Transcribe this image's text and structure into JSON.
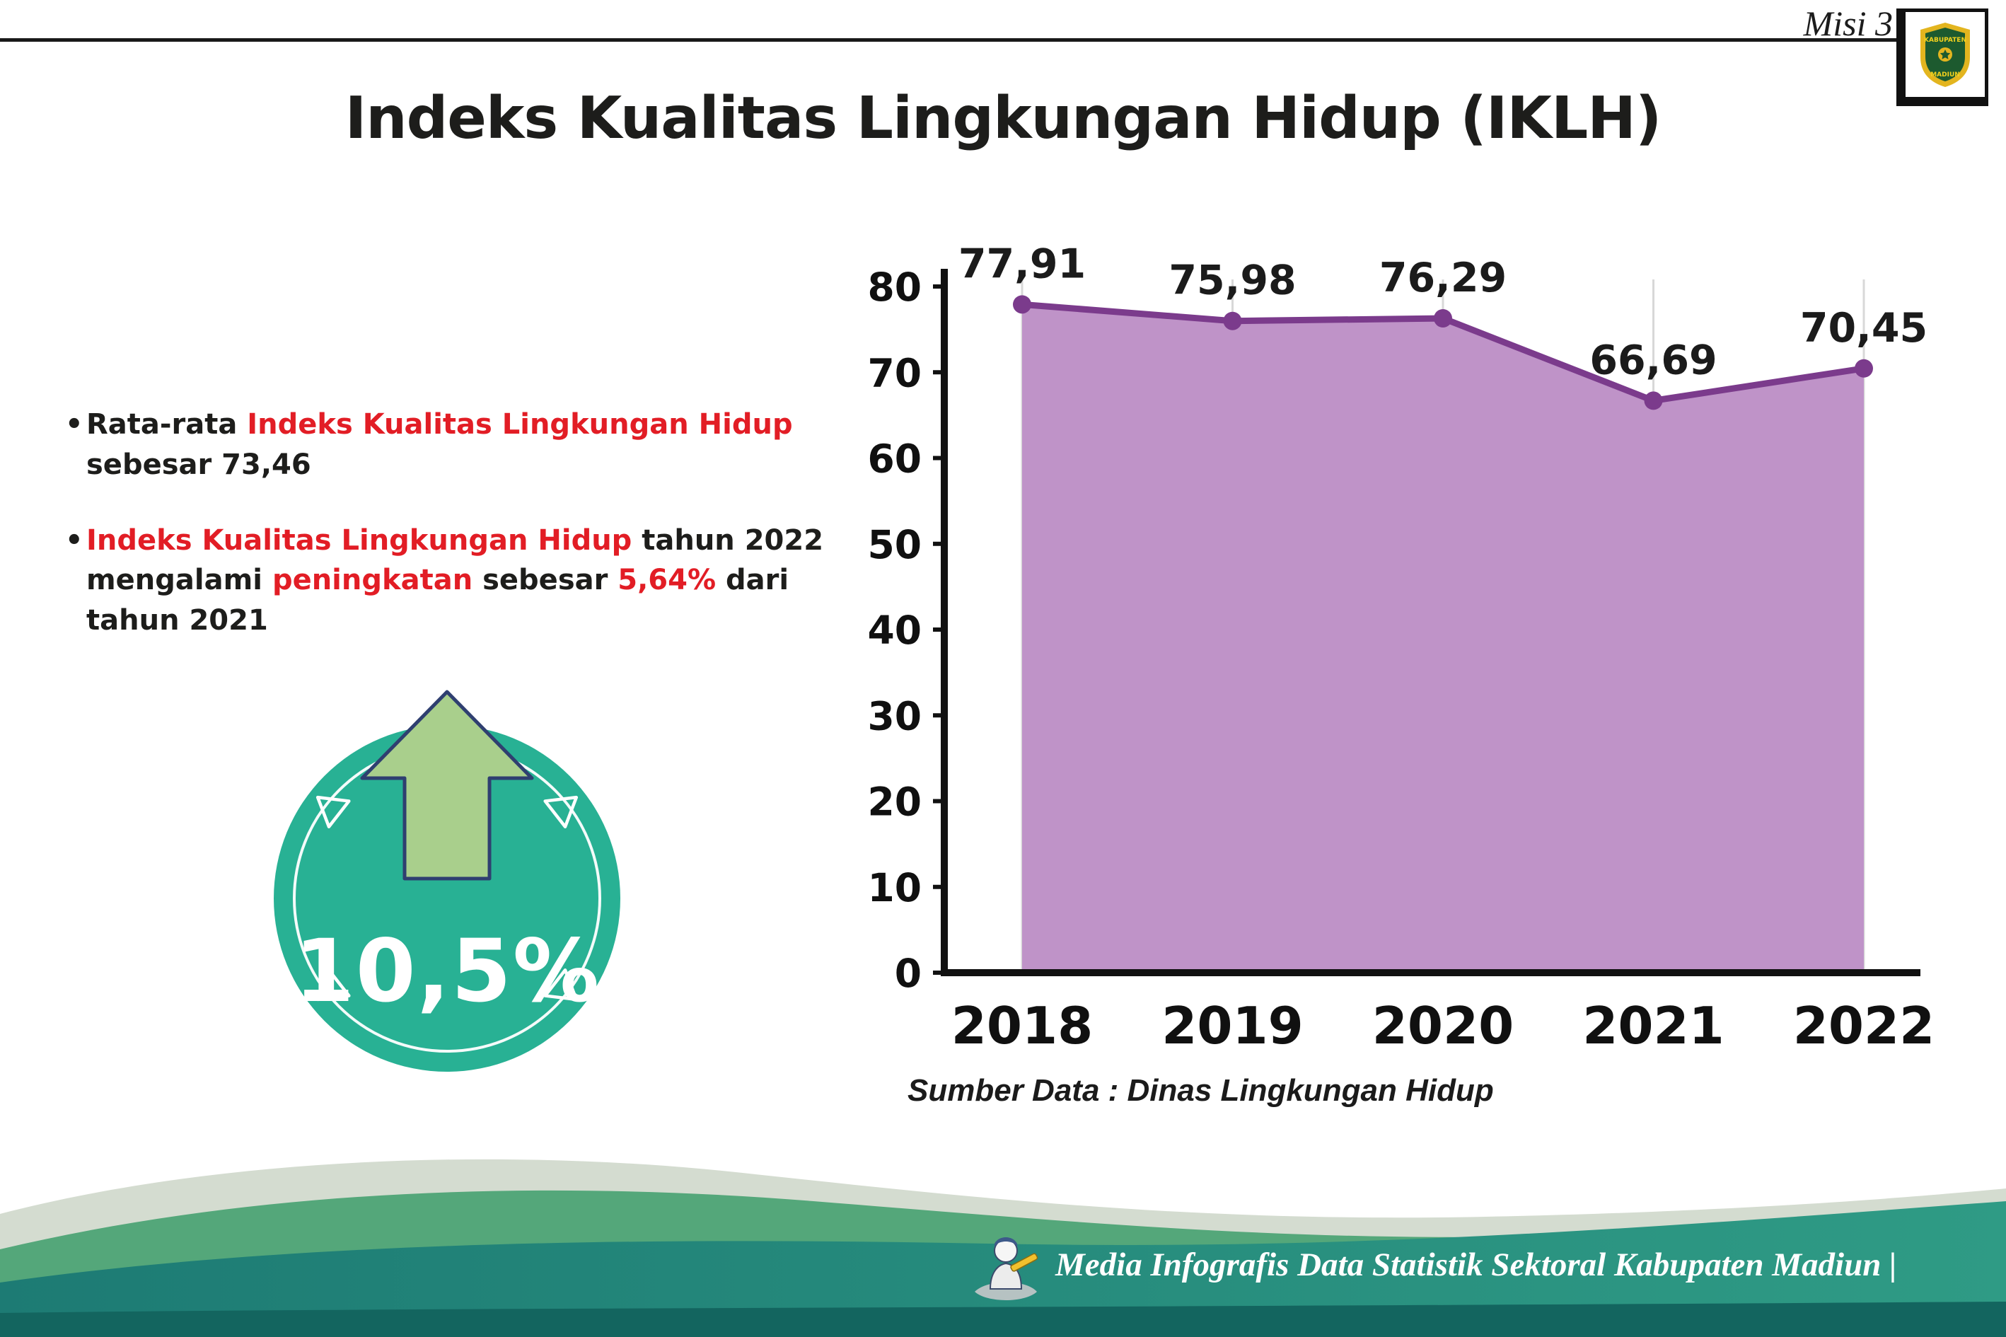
{
  "header": {
    "misi": "Misi 3",
    "title": "Indeks Kualitas Lingkungan Hidup (IKLH)"
  },
  "logo": {
    "top": "KABUPATEN",
    "bottom": "MADIUN"
  },
  "bullets": [
    {
      "marker": "•",
      "segments": [
        {
          "text": "Rata-rata ",
          "red": false
        },
        {
          "text": "Indeks Kualitas Lingkungan Hidup",
          "red": true
        },
        {
          "text": " sebesar 73,46",
          "red": false
        }
      ]
    },
    {
      "marker": "•",
      "segments": [
        {
          "text": "Indeks Kualitas Lingkungan Hidup",
          "red": true
        },
        {
          "text": " tahun 2022 mengalami ",
          "red": false
        },
        {
          "text": "peningkatan",
          "red": true
        },
        {
          "text": " sebesar ",
          "red": false
        },
        {
          "text": "5,64%",
          "red": true
        },
        {
          "text": " dari tahun 2021",
          "red": false
        }
      ]
    }
  ],
  "badge": {
    "value": "10,5%"
  },
  "chart_data": {
    "type": "area",
    "categories": [
      "2018",
      "2019",
      "2020",
      "2021",
      "2022"
    ],
    "values": [
      77.91,
      75.98,
      76.29,
      66.69,
      70.45
    ],
    "value_labels": [
      "77,91",
      "75,98",
      "76,29",
      "66,69",
      "70,45"
    ],
    "title": "",
    "xlabel": "",
    "ylabel": "",
    "ylim": [
      0,
      80
    ],
    "yticks": [
      0,
      10,
      20,
      30,
      40,
      50,
      60,
      70,
      80
    ],
    "grid": "vertical",
    "legend": "none",
    "area_color": "#bf93c8",
    "line_color": "#7b3b8c"
  },
  "source": "Sumber Data : Dinas Lingkungan Hidup",
  "footer": {
    "text": "Media Infografis Data Statistik Sektoral Kabupaten Madiun |"
  },
  "colors": {
    "red_accent": "#e21d25",
    "badge_teal": "#28b194",
    "arrow_green": "#a9cf8c",
    "footer_green": "#54a77a",
    "footer_teal": "#1d7b74"
  }
}
